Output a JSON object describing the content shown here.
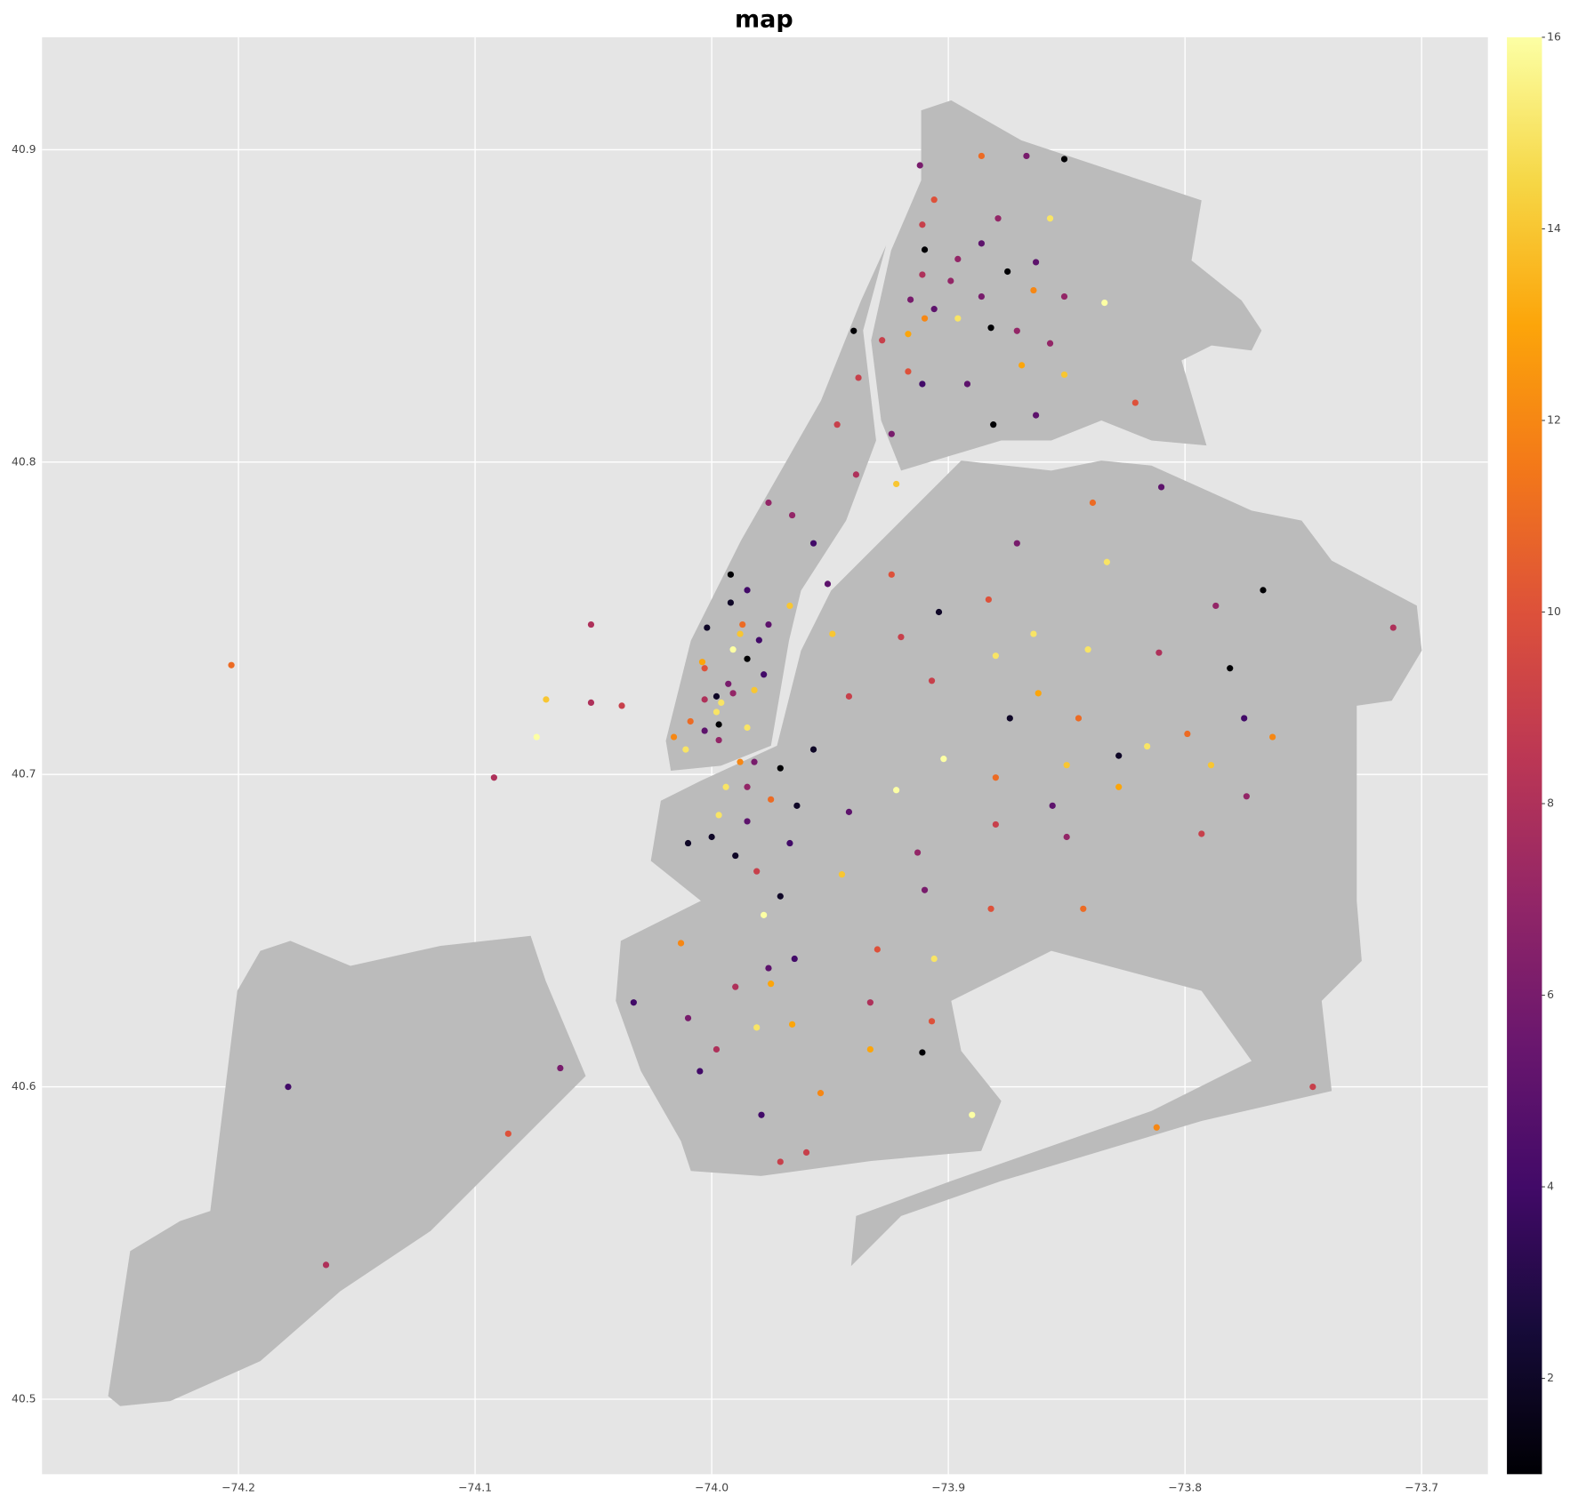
{
  "chart_data": {
    "type": "scatter",
    "title": "map",
    "colormap": "inferno",
    "grid": true,
    "xlim": [
      -74.283,
      -73.672
    ],
    "ylim": [
      40.476,
      40.936
    ],
    "xticks": [
      {
        "value": -74.2,
        "label": "−74.2"
      },
      {
        "value": -74.1,
        "label": "−74.1"
      },
      {
        "value": -74.0,
        "label": "−74.0"
      },
      {
        "value": -73.9,
        "label": "−73.9"
      },
      {
        "value": -73.8,
        "label": "−73.8"
      },
      {
        "value": -73.7,
        "label": "−73.7"
      }
    ],
    "yticks": [
      40.5,
      40.6,
      40.7,
      40.8,
      40.9
    ],
    "clim": [
      1,
      16
    ],
    "cticks": [
      2,
      4,
      6,
      8,
      10,
      12,
      14,
      16
    ],
    "x": [
      -74.203,
      -74.179,
      -74.163,
      -74.086,
      -74.064,
      -74.092,
      -74.074,
      -74.07,
      -74.051,
      -74.051,
      -74.038,
      -74.033,
      -74.01,
      -73.998,
      -74.005,
      -73.99,
      -74.013,
      -74.01,
      -74.0,
      -73.99,
      -73.997,
      -73.994,
      -73.988,
      -73.982,
      -73.985,
      -73.975,
      -73.985,
      -73.971,
      -73.964,
      -73.957,
      -73.967,
      -73.981,
      -73.971,
      -73.978,
      -73.976,
      -73.965,
      -73.975,
      -73.981,
      -73.966,
      -73.979,
      -73.971,
      -73.96,
      -73.954,
      -73.942,
      -73.945,
      -73.93,
      -73.933,
      -73.933,
      -73.911,
      -73.907,
      -73.906,
      -73.91,
      -73.913,
      -73.922,
      -73.902,
      -73.89,
      -73.882,
      -73.88,
      -73.88,
      -73.874,
      -73.862,
      -73.856,
      -73.85,
      -73.85,
      -73.845,
      -73.843,
      -73.828,
      -73.828,
      -73.816,
      -73.812,
      -73.799,
      -73.793,
      -73.789,
      -73.775,
      -73.774,
      -73.763,
      -73.746,
      -73.712,
      -73.781,
      -73.767,
      -73.787,
      -73.811,
      -73.841,
      -73.864,
      -73.88,
      -73.883,
      -73.904,
      -73.92,
      -73.907,
      -73.924,
      -73.942,
      -73.949,
      -73.951,
      -73.957,
      -73.966,
      -73.976,
      -73.967,
      -73.985,
      -73.992,
      -73.992,
      -74.002,
      -73.987,
      -73.988,
      -73.991,
      -73.976,
      -73.98,
      -73.985,
      -73.978,
      -74.004,
      -74.003,
      -73.993,
      -73.982,
      -73.991,
      -73.998,
      -73.996,
      -74.003,
      -73.998,
      -73.997,
      -74.009,
      -74.003,
      -73.985,
      -73.997,
      -74.016,
      -74.011,
      -73.939,
      -73.922,
      -73.924,
      -73.947,
      -73.938,
      -73.94,
      -73.928,
      -73.917,
      -73.917,
      -73.911,
      -73.91,
      -73.916,
      -73.911,
      -73.906,
      -73.899,
      -73.896,
      -73.91,
      -73.911,
      -73.906,
      -73.912,
      -73.886,
      -73.867,
      -73.851,
      -73.879,
      -73.857,
      -73.886,
      -73.875,
      -73.863,
      -73.886,
      -73.864,
      -73.851,
      -73.834,
      -73.896,
      -73.882,
      -73.871,
      -73.857,
      -73.869,
      -73.851,
      -73.892,
      -73.863,
      -73.881,
      -73.821,
      -73.81,
      -73.839,
      -73.871,
      -73.833
    ],
    "y": [
      40.735,
      40.6,
      40.543,
      40.585,
      40.606,
      40.699,
      40.712,
      40.724,
      40.748,
      40.723,
      40.722,
      40.627,
      40.622,
      40.612,
      40.605,
      40.632,
      40.646,
      40.678,
      40.68,
      40.674,
      40.687,
      40.696,
      40.704,
      40.704,
      40.696,
      40.692,
      40.685,
      40.702,
      40.69,
      40.708,
      40.678,
      40.669,
      40.661,
      40.655,
      40.638,
      40.641,
      40.633,
      40.619,
      40.62,
      40.591,
      40.576,
      40.579,
      40.598,
      40.688,
      40.668,
      40.644,
      40.627,
      40.612,
      40.611,
      40.621,
      40.641,
      40.663,
      40.675,
      40.695,
      40.705,
      40.591,
      40.657,
      40.684,
      40.699,
      40.718,
      40.726,
      40.69,
      40.68,
      40.703,
      40.718,
      40.657,
      40.696,
      40.706,
      40.709,
      40.587,
      40.713,
      40.681,
      40.703,
      40.718,
      40.693,
      40.712,
      40.6,
      40.747,
      40.734,
      40.759,
      40.754,
      40.739,
      40.74,
      40.745,
      40.738,
      40.756,
      40.752,
      40.744,
      40.73,
      40.764,
      40.725,
      40.745,
      40.761,
      40.774,
      40.783,
      40.787,
      40.754,
      40.759,
      40.764,
      40.755,
      40.747,
      40.748,
      40.745,
      40.74,
      40.748,
      40.743,
      40.737,
      40.732,
      40.736,
      40.734,
      40.729,
      40.727,
      40.726,
      40.725,
      40.723,
      40.724,
      40.72,
      40.716,
      40.717,
      40.714,
      40.715,
      40.711,
      40.712,
      40.708,
      40.796,
      40.793,
      40.809,
      40.812,
      40.827,
      40.842,
      40.839,
      40.841,
      40.829,
      40.825,
      40.846,
      40.852,
      40.86,
      40.849,
      40.858,
      40.865,
      40.868,
      40.876,
      40.884,
      40.895,
      40.898,
      40.898,
      40.897,
      40.878,
      40.878,
      40.87,
      40.861,
      40.864,
      40.853,
      40.855,
      40.853,
      40.851,
      40.846,
      40.843,
      40.842,
      40.838,
      40.831,
      40.828,
      40.825,
      40.815,
      40.812,
      40.819,
      40.792,
      40.787,
      40.774,
      40.768
    ],
    "values": [
      11,
      4,
      8,
      10,
      6,
      8,
      16,
      14,
      8,
      8,
      9,
      4,
      6,
      8,
      4,
      8,
      12,
      2,
      2,
      2,
      15,
      15,
      12,
      6,
      7,
      11,
      5,
      1,
      2,
      2,
      4,
      9,
      2,
      16,
      5,
      4,
      13,
      15,
      13,
      4,
      9,
      9,
      12,
      5,
      14,
      10,
      8,
      13,
      1,
      10,
      15,
      6,
      7,
      16,
      16,
      16,
      10,
      9,
      11,
      2,
      13,
      5,
      7,
      14,
      11,
      11,
      13,
      2,
      15,
      12,
      11,
      9,
      14,
      4,
      7,
      12,
      9,
      8,
      1,
      1,
      7,
      8,
      15,
      15,
      15,
      10,
      2,
      9,
      9,
      10,
      9,
      14,
      5,
      4,
      7,
      7,
      14,
      4,
      1,
      2,
      2,
      11,
      14,
      16,
      5,
      4,
      1,
      4,
      13,
      10,
      6,
      14,
      7,
      2,
      15,
      8,
      15,
      1,
      11,
      5,
      15,
      7,
      12,
      15,
      8,
      14,
      6,
      9,
      9,
      1,
      9,
      13,
      10,
      4,
      12,
      6,
      8,
      5,
      7,
      7,
      1,
      9,
      10,
      6,
      11,
      6,
      1,
      7,
      15,
      5,
      1,
      5,
      6,
      12,
      7,
      16,
      15,
      1,
      7,
      7,
      13,
      14,
      5,
      5,
      1,
      10,
      5,
      11,
      6,
      15
    ]
  }
}
